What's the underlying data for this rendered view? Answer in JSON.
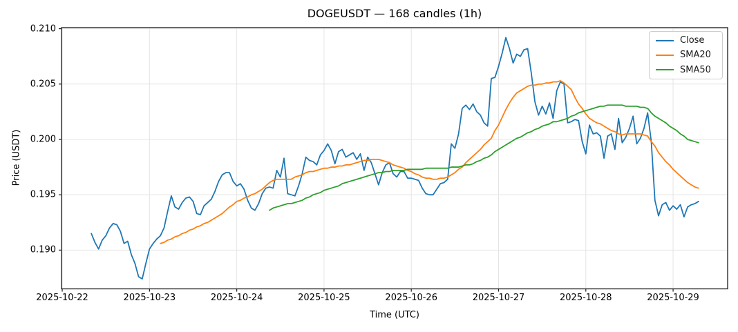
{
  "figure": {
    "title": "DOGEUSDT — 168 candles (1h)",
    "xlabel": "Time (UTC)",
    "ylabel": "Price (USDT)"
  },
  "legend": {
    "items": [
      {
        "label": "Close",
        "color": "#1f77b4"
      },
      {
        "label": "SMA20",
        "color": "#ff7f0e"
      },
      {
        "label": "SMA50",
        "color": "#2ca02c"
      }
    ]
  },
  "chart_data": {
    "type": "line",
    "title": "DOGEUSDT — 168 candles (1h)",
    "xlabel": "Time (UTC)",
    "ylabel": "Price (USDT)",
    "symbol": "DOGEUSDT",
    "interval": "1h",
    "n_candles": 168,
    "grid": true,
    "grid_color": "#e4e4e4",
    "spine_color": "#1a1a1a",
    "legend_position": "upper right",
    "t_unit": "hours since 2025-10-22 00:00 UTC",
    "xlim": [
      -0.2,
      183.0
    ],
    "ylim": [
      0.1865,
      0.2101
    ],
    "x_ticks": [
      {
        "t": 0,
        "label": "2025-10-22"
      },
      {
        "t": 24,
        "label": "2025-10-23"
      },
      {
        "t": 48,
        "label": "2025-10-24"
      },
      {
        "t": 72,
        "label": "2025-10-25"
      },
      {
        "t": 96,
        "label": "2025-10-26"
      },
      {
        "t": 120,
        "label": "2025-10-27"
      },
      {
        "t": 144,
        "label": "2025-10-28"
      },
      {
        "t": 168,
        "label": "2025-10-29"
      }
    ],
    "y_ticks": [
      {
        "value": 0.19,
        "label": "0.190"
      },
      {
        "value": 0.195,
        "label": "0.195"
      },
      {
        "value": 0.2,
        "label": "0.200"
      },
      {
        "value": 0.205,
        "label": "0.205"
      },
      {
        "value": 0.21,
        "label": "0.210"
      }
    ],
    "series": [
      {
        "name": "Close",
        "color": "#1f77b4",
        "t_start": 8,
        "dt": 1,
        "values": [
          0.1915,
          0.1907,
          0.1901,
          0.1909,
          0.1913,
          0.192,
          0.1924,
          0.1923,
          0.1917,
          0.1906,
          0.1908,
          0.1896,
          0.1888,
          0.1876,
          0.1874,
          0.1888,
          0.1901,
          0.1906,
          0.191,
          0.1913,
          0.192,
          0.1935,
          0.1949,
          0.1939,
          0.1937,
          0.1943,
          0.1947,
          0.1948,
          0.1944,
          0.1933,
          0.1932,
          0.194,
          0.1943,
          0.1946,
          0.1953,
          0.1962,
          0.1968,
          0.197,
          0.197,
          0.1962,
          0.1958,
          0.196,
          0.1955,
          0.1945,
          0.1938,
          0.1936,
          0.1942,
          0.1951,
          0.1956,
          0.1957,
          0.1956,
          0.1972,
          0.1966,
          0.1983,
          0.1951,
          0.195,
          0.1949,
          0.1958,
          0.1969,
          0.1984,
          0.1981,
          0.198,
          0.1977,
          0.1986,
          0.199,
          0.1996,
          0.199,
          0.1978,
          0.1989,
          0.1991,
          0.1984,
          0.1986,
          0.1988,
          0.1982,
          0.1987,
          0.1972,
          0.1984,
          0.1979,
          0.1969,
          0.1959,
          0.197,
          0.1977,
          0.1979,
          0.1969,
          0.1966,
          0.1971,
          0.1971,
          0.1965,
          0.1965,
          0.1964,
          0.1963,
          0.1956,
          0.1951,
          0.195,
          0.195,
          0.1955,
          0.196,
          0.1961,
          0.1964,
          0.1996,
          0.1992,
          0.2005,
          0.2028,
          0.2031,
          0.2027,
          0.2032,
          0.2025,
          0.2022,
          0.2015,
          0.2012,
          0.2055,
          0.2056,
          0.2066,
          0.2078,
          0.2092,
          0.2082,
          0.2069,
          0.2077,
          0.2075,
          0.2081,
          0.2082,
          0.206,
          0.2034,
          0.2022,
          0.203,
          0.2023,
          0.2033,
          0.2019,
          0.2044,
          0.2052,
          0.205,
          0.2015,
          0.2016,
          0.2018,
          0.2017,
          0.1998,
          0.1987,
          0.2013,
          0.2005,
          0.2006,
          0.2003,
          0.1983,
          0.2003,
          0.2005,
          0.1991,
          0.2019,
          0.1997,
          0.2002,
          0.201,
          0.2021,
          0.1996,
          0.2001,
          0.201,
          0.2024,
          0.1998,
          0.1945,
          0.1931,
          0.1941,
          0.1943,
          0.1936,
          0.194,
          0.1937,
          0.1941,
          0.193,
          0.1939,
          0.1941,
          0.1942,
          0.1944
        ]
      },
      {
        "name": "SMA20",
        "color": "#ff7f0e",
        "t_start": 27,
        "dt": 1,
        "values": [
          0.1906,
          0.1907,
          0.1909,
          0.191,
          0.1912,
          0.1913,
          0.1915,
          0.1916,
          0.1918,
          0.1919,
          0.1921,
          0.1922,
          0.1924,
          0.1925,
          0.1927,
          0.1929,
          0.1931,
          0.1933,
          0.1936,
          0.1939,
          0.1941,
          0.1944,
          0.1945,
          0.1947,
          0.1948,
          0.195,
          0.1951,
          0.1953,
          0.1955,
          0.1958,
          0.1961,
          0.1963,
          0.1964,
          0.1964,
          0.1964,
          0.1964,
          0.1964,
          0.1966,
          0.1967,
          0.1968,
          0.197,
          0.1971,
          0.1971,
          0.1972,
          0.1973,
          0.1974,
          0.1974,
          0.1975,
          0.1975,
          0.1976,
          0.1976,
          0.1977,
          0.1977,
          0.1978,
          0.1979,
          0.198,
          0.1981,
          0.1981,
          0.1982,
          0.1982,
          0.1982,
          0.1981,
          0.198,
          0.1979,
          0.1977,
          0.1976,
          0.1975,
          0.1974,
          0.1972,
          0.1971,
          0.1969,
          0.1968,
          0.1966,
          0.1965,
          0.1965,
          0.1964,
          0.1964,
          0.1965,
          0.1965,
          0.1966,
          0.1968,
          0.197,
          0.1973,
          0.1975,
          0.1979,
          0.1982,
          0.1985,
          0.1988,
          0.1991,
          0.1995,
          0.1998,
          0.2001,
          0.2008,
          0.2013,
          0.202,
          0.2027,
          0.2033,
          0.2038,
          0.2042,
          0.2044,
          0.2046,
          0.2048,
          0.2049,
          0.2049,
          0.205,
          0.205,
          0.2051,
          0.2051,
          0.2052,
          0.2052,
          0.2053,
          0.2051,
          0.2048,
          0.2045,
          0.2038,
          0.2032,
          0.2028,
          0.2023,
          0.2019,
          0.2017,
          0.2015,
          0.2014,
          0.2012,
          0.201,
          0.2008,
          0.2007,
          0.2005,
          0.2004,
          0.2005,
          0.2005,
          0.2005,
          0.2005,
          0.2005,
          0.2004,
          0.2003,
          0.1998,
          0.1994,
          0.1988,
          0.1984,
          0.198,
          0.1977,
          0.1973,
          0.197,
          0.1967,
          0.1964,
          0.1961,
          0.1959,
          0.1957,
          0.1956
        ]
      },
      {
        "name": "SMA50",
        "color": "#2ca02c",
        "t_start": 57,
        "dt": 1,
        "values": [
          0.1936,
          0.1938,
          0.1939,
          0.194,
          0.1941,
          0.1942,
          0.1942,
          0.1943,
          0.1944,
          0.1945,
          0.1947,
          0.1948,
          0.195,
          0.1951,
          0.1952,
          0.1954,
          0.1955,
          0.1956,
          0.1957,
          0.1958,
          0.196,
          0.1961,
          0.1962,
          0.1963,
          0.1964,
          0.1965,
          0.1966,
          0.1967,
          0.1968,
          0.1969,
          0.197,
          0.197,
          0.1971,
          0.1971,
          0.1972,
          0.1972,
          0.1972,
          0.1972,
          0.1973,
          0.1973,
          0.1973,
          0.1973,
          0.1973,
          0.1974,
          0.1974,
          0.1974,
          0.1974,
          0.1974,
          0.1974,
          0.1974,
          0.1975,
          0.1975,
          0.1975,
          0.1976,
          0.1977,
          0.1977,
          0.1978,
          0.198,
          0.1981,
          0.1983,
          0.1984,
          0.1986,
          0.1989,
          0.1991,
          0.1993,
          0.1995,
          0.1997,
          0.1999,
          0.2001,
          0.2002,
          0.2004,
          0.2006,
          0.2007,
          0.2009,
          0.201,
          0.2012,
          0.2013,
          0.2014,
          0.2016,
          0.2016,
          0.2017,
          0.2018,
          0.2019,
          0.2021,
          0.2022,
          0.2024,
          0.2025,
          0.2026,
          0.2027,
          0.2028,
          0.2029,
          0.203,
          0.203,
          0.2031,
          0.2031,
          0.2031,
          0.2031,
          0.2031,
          0.203,
          0.203,
          0.203,
          0.203,
          0.2029,
          0.2029,
          0.2028,
          0.2024,
          0.2021,
          0.2019,
          0.2017,
          0.2015,
          0.2012,
          0.201,
          0.2008,
          0.2005,
          0.2003,
          0.2,
          0.1999,
          0.1998,
          0.1997
        ]
      }
    ]
  }
}
